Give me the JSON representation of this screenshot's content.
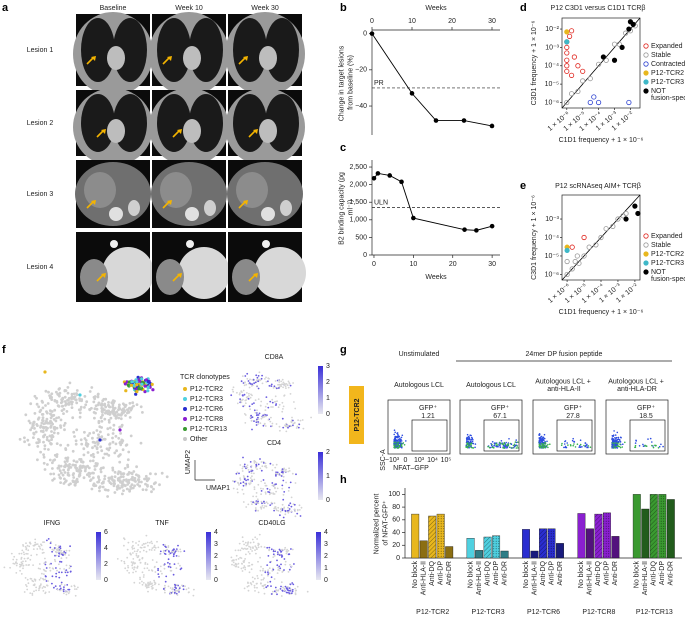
{
  "panel_a": {
    "label": "a",
    "columns": [
      "Baseline",
      "Week 10",
      "Week 30"
    ],
    "rows": [
      "Lesion 1",
      "Lesion 2",
      "Lesion 3",
      "Lesion 4"
    ]
  },
  "chart_data": [
    {
      "type": "line",
      "label": "b",
      "x_label": "Weeks",
      "y_label": "Change in target lesions from baseline (%)",
      "x": [
        0,
        10,
        16,
        23,
        30
      ],
      "values": [
        0,
        -33,
        -48,
        -48,
        -51
      ],
      "color": "#000000",
      "xlim": [
        0,
        32
      ],
      "ylim": [
        -56,
        2
      ],
      "xticks": [
        0,
        10,
        20,
        30
      ],
      "yticks": [
        0,
        {
          "value": -20,
          "label": "−20"
        },
        {
          "value": -40,
          "label": "−40"
        }
      ],
      "x_axis": "top",
      "reference_line": {
        "value": -30,
        "label": "PR"
      }
    },
    {
      "type": "line",
      "label": "c",
      "x_label": "Weeks",
      "y_label": "B2 binding capacity (pg ml⁻¹)",
      "x": [
        0,
        1,
        4,
        7,
        10,
        23,
        26,
        30
      ],
      "values": [
        2180,
        2320,
        2260,
        2080,
        1050,
        720,
        700,
        820
      ],
      "color": "#000000",
      "xlim": [
        -0.5,
        32
      ],
      "ylim": [
        0,
        2700
      ],
      "xticks": [
        0,
        10,
        20,
        30
      ],
      "yticks": [
        0,
        500,
        {
          "value": 1000,
          "label": "1,000"
        },
        {
          "value": 1500,
          "label": "1,500"
        },
        {
          "value": 2000,
          "label": "2,000"
        },
        {
          "value": 2500,
          "label": "2,500"
        }
      ],
      "x_axis": "bottom",
      "reference_line": {
        "value": 1350,
        "label": "ULN"
      }
    },
    {
      "type": "scatter",
      "label": "d",
      "title": "P12 C3D1 versus C1D1 TCRβ",
      "x_label": "C1D1 frequency + 1 × 10⁻⁶",
      "y_label": "C3D1 frequency + 1 × 10⁻⁶",
      "log": true,
      "xlim": [
        5e-07,
        0.04
      ],
      "ylim": [
        5e-07,
        0.04
      ],
      "xticks": [
        {
          "value": 1e-06,
          "label": "1 × 10⁻⁶"
        },
        {
          "value": 1e-05,
          "label": "1 × 10⁻⁵"
        },
        {
          "value": 0.0001,
          "label": "1 × 10⁻⁴"
        },
        {
          "value": 0.001,
          "label": "1 × 10⁻³"
        },
        {
          "value": 0.01,
          "label": "1 × 10⁻²"
        }
      ],
      "yticks": [
        {
          "value": 1e-06,
          "label": "10⁻⁶"
        },
        {
          "value": 1e-05,
          "label": "10⁻⁵"
        },
        {
          "value": 0.0001,
          "label": "10⁻⁴"
        },
        {
          "value": 0.001,
          "label": "10⁻³"
        },
        {
          "value": 0.01,
          "label": "10⁻²"
        }
      ],
      "series": [
        {
          "name": "Expanded",
          "color": "#e0261f",
          "filled": false,
          "x": [
            1e-06,
            1e-06,
            1e-06,
            1e-06,
            1e-06,
            1e-06,
            2e-06,
            2e-06,
            5e-06,
            1e-05,
            1.5e-06,
            3e-06
          ],
          "values": [
            0.001,
            0.002,
            0.0005,
            0.0002,
            0.0001,
            5e-05,
            3e-05,
            0.008,
            0.0001,
            5e-05,
            0.004,
            0.0003
          ]
        },
        {
          "name": "Stable",
          "color": "#9a9a9a",
          "filled": false,
          "x": [
            1e-06,
            2e-06,
            5e-06,
            1e-05,
            3e-05,
            0.0001,
            0.0003,
            0.001,
            0.002,
            0.005,
            0.01,
            0.02
          ],
          "values": [
            1e-06,
            3e-06,
            4e-06,
            1.5e-05,
            2e-05,
            0.00012,
            0.0002,
            0.0015,
            0.0015,
            0.006,
            0.008,
            0.015
          ]
        },
        {
          "name": "Contracted",
          "color": "#2a3fd0",
          "filled": false,
          "x": [
            3e-05,
            5e-05,
            0.0001,
            0.008
          ],
          "values": [
            1e-06,
            2e-06,
            1e-06,
            1e-06
          ]
        },
        {
          "name": "P12-TCR2",
          "color": "#e8b71e",
          "filled": true,
          "x": [
            1e-06
          ],
          "values": [
            0.007
          ]
        },
        {
          "name": "P12-TCR3",
          "color": "#3fb8c8",
          "filled": true,
          "x": [
            1e-06
          ],
          "values": [
            0.002
          ]
        },
        {
          "name": "NOT fusion-specific",
          "color": "#000000",
          "filled": true,
          "x": [
            0.0002,
            0.001,
            0.003,
            0.008,
            0.015,
            0.01
          ],
          "values": [
            0.0003,
            0.0002,
            0.001,
            0.01,
            0.018,
            0.025
          ]
        }
      ]
    },
    {
      "type": "scatter",
      "label": "e",
      "title": "P12 scRNAseq AIM+ TCRβ",
      "x_label": "C1D1 frequency + 1 × 10⁻⁶",
      "y_label": "C3D1 frequency + 1 × 10⁻⁶",
      "log": true,
      "xlim": [
        5e-07,
        0.02
      ],
      "ylim": [
        5e-07,
        0.02
      ],
      "xticks": [
        {
          "value": 1e-06,
          "label": "1 × 10⁻⁶"
        },
        {
          "value": 1e-05,
          "label": "1 × 10⁻⁵"
        },
        {
          "value": 0.0001,
          "label": "1 × 10⁻⁴"
        },
        {
          "value": 0.001,
          "label": "1 × 10⁻³"
        },
        {
          "value": 0.01,
          "label": "1 × 10⁻²"
        }
      ],
      "yticks": [
        {
          "value": 1e-06,
          "label": "10⁻⁶"
        },
        {
          "value": 1e-05,
          "label": "10⁻⁵"
        },
        {
          "value": 0.0001,
          "label": "10⁻⁴"
        },
        {
          "value": 0.001,
          "label": "10⁻³"
        }
      ],
      "series": [
        {
          "name": "Expanded",
          "color": "#e0261f",
          "filled": false,
          "x": [
            1e-05,
            2e-06
          ],
          "values": [
            0.0001,
            3e-05
          ]
        },
        {
          "name": "Stable",
          "color": "#9a9a9a",
          "filled": false,
          "x": [
            1e-06,
            2e-06,
            3e-06,
            5e-06,
            1e-05,
            2e-05,
            5e-05,
            0.0001,
            0.0002,
            0.0005,
            0.001,
            0.002,
            0.003,
            1e-06,
            4e-06
          ],
          "values": [
            1e-06,
            2e-06,
            5e-06,
            4e-06,
            1e-05,
            3e-05,
            4e-05,
            0.0001,
            0.0003,
            0.0004,
            0.001,
            0.0015,
            0.002,
            5e-06,
            1e-05
          ]
        },
        {
          "name": "P12-TCR2",
          "color": "#e8b71e",
          "filled": true,
          "x": [
            1e-06
          ],
          "values": [
            3e-05
          ]
        },
        {
          "name": "P12-TCR3",
          "color": "#3fb8c8",
          "filled": true,
          "x": [
            1e-06
          ],
          "values": [
            2e-05
          ]
        },
        {
          "name": "NOT fusion-specific",
          "color": "#000000",
          "filled": true,
          "x": [
            0.003,
            0.01,
            0.015
          ],
          "values": [
            0.001,
            0.005,
            0.002
          ]
        }
      ]
    },
    {
      "type": "bar",
      "label": "h",
      "y_label": "Normalized percent of NFAT-GFP⁺",
      "categories": [
        "P12-TCR2",
        "P12-TCR3",
        "P12-TCR6",
        "P12-TCR8",
        "P12-TCR13"
      ],
      "category_colors": [
        "#e8b71e",
        "#4fd0e0",
        "#2a2dd0",
        "#8a1fd0",
        "#3a9a30"
      ],
      "series": [
        {
          "name": "No block",
          "values": [
            69,
            31,
            45,
            70,
            100
          ]
        },
        {
          "name": "Anti-HLA-II",
          "values": [
            27,
            12,
            11,
            46,
            77
          ]
        },
        {
          "name": "Anti-DQ",
          "values": [
            66,
            33,
            46,
            69,
            100
          ]
        },
        {
          "name": "Anti-DP",
          "values": [
            69,
            35,
            46,
            71,
            100
          ]
        },
        {
          "name": "Anti-DR",
          "values": [
            18,
            11,
            23,
            34,
            92
          ]
        }
      ],
      "ylim": [
        0,
        110
      ],
      "yticks": [
        0,
        20,
        40,
        60,
        80,
        100
      ]
    }
  ],
  "panel_f": {
    "label": "f",
    "legend_title": "TCR clonotypes",
    "clonotypes": [
      {
        "name": "P12-TCR2",
        "color": "#e8b71e"
      },
      {
        "name": "P12-TCR3",
        "color": "#4fd0e0"
      },
      {
        "name": "P12-TCR6",
        "color": "#2a2dd0"
      },
      {
        "name": "P12-TCR8",
        "color": "#8a1fd0"
      },
      {
        "name": "P12-TCR13",
        "color": "#3a9a30"
      },
      {
        "name": "Other",
        "color": "#c8c8c8"
      }
    ],
    "axes": [
      "UMAP1",
      "UMAP2"
    ],
    "genes": [
      {
        "name": "CD8A",
        "scale_ticks": [
          0,
          1,
          2,
          3
        ]
      },
      {
        "name": "CD4",
        "scale_ticks": [
          0,
          1,
          2
        ]
      },
      {
        "name": "IFNG",
        "scale_ticks": [
          0,
          2,
          4,
          6
        ]
      },
      {
        "name": "TNF",
        "scale_ticks": [
          0,
          1,
          2,
          3,
          4
        ]
      },
      {
        "name": "CD40LG",
        "scale_ticks": [
          0,
          1,
          2,
          3,
          4
        ]
      }
    ]
  },
  "panel_g": {
    "label": "g",
    "row_label": "P12-TCR2",
    "condition_header": "24mer DP fusion peptide",
    "plots": [
      {
        "header": "Unstimulated",
        "sublabel": "Autologous LCL",
        "gate": "GFP⁺",
        "value": 1.21
      },
      {
        "sublabel": "Autologous LCL",
        "gate": "GFP⁺",
        "value": 67.1
      },
      {
        "sublabel": "Autologous LCL + anti-HLA-II",
        "gate": "GFP⁺",
        "value": 27.8
      },
      {
        "sublabel": "Autologous LCL + anti-HLA-DR",
        "gate": "GFP⁺",
        "value": 18.5
      }
    ],
    "y_axis": "SSC-A",
    "x_axis": "NFAT–GFP",
    "x_tick_labels": [
      "−10³",
      "0",
      "10³",
      "10⁴",
      "10⁵"
    ]
  }
}
